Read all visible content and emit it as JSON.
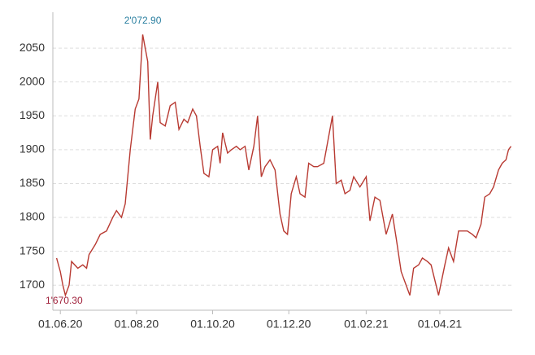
{
  "chart_data": {
    "type": "line",
    "x": [
      "2020-05-29",
      "2020-06-01",
      "2020-06-03",
      "2020-06-05",
      "2020-06-08",
      "2020-06-10",
      "2020-06-15",
      "2020-06-19",
      "2020-06-22",
      "2020-06-24",
      "2020-06-29",
      "2020-07-03",
      "2020-07-08",
      "2020-07-13",
      "2020-07-16",
      "2020-07-20",
      "2020-07-23",
      "2020-07-27",
      "2020-07-31",
      "2020-08-03",
      "2020-08-06",
      "2020-08-10",
      "2020-08-12",
      "2020-08-14",
      "2020-08-18",
      "2020-08-20",
      "2020-08-24",
      "2020-08-28",
      "2020-09-01",
      "2020-09-04",
      "2020-09-08",
      "2020-09-11",
      "2020-09-15",
      "2020-09-18",
      "2020-09-21",
      "2020-09-24",
      "2020-09-28",
      "2020-10-01",
      "2020-10-05",
      "2020-10-07",
      "2020-10-09",
      "2020-10-13",
      "2020-10-16",
      "2020-10-20",
      "2020-10-23",
      "2020-10-27",
      "2020-10-30",
      "2020-11-03",
      "2020-11-06",
      "2020-11-09",
      "2020-11-12",
      "2020-11-16",
      "2020-11-20",
      "2020-11-24",
      "2020-11-27",
      "2020-11-30",
      "2020-12-03",
      "2020-12-07",
      "2020-12-10",
      "2020-12-14",
      "2020-12-17",
      "2020-12-21",
      "2020-12-24",
      "2020-12-29",
      "2021-01-05",
      "2021-01-08",
      "2021-01-12",
      "2021-01-15",
      "2021-01-19",
      "2021-01-22",
      "2021-01-27",
      "2021-02-01",
      "2021-02-04",
      "2021-02-08",
      "2021-02-12",
      "2021-02-17",
      "2021-02-22",
      "2021-02-25",
      "2021-03-01",
      "2021-03-05",
      "2021-03-08",
      "2021-03-11",
      "2021-03-15",
      "2021-03-18",
      "2021-03-22",
      "2021-03-25",
      "2021-03-31",
      "2021-04-05",
      "2021-04-08",
      "2021-04-12",
      "2021-04-16",
      "2021-04-20",
      "2021-04-23",
      "2021-04-27",
      "2021-04-30",
      "2021-05-04",
      "2021-05-07",
      "2021-05-11",
      "2021-05-14",
      "2021-05-18",
      "2021-05-21",
      "2021-05-24",
      "2021-05-26",
      "2021-05-28"
    ],
    "series": [
      {
        "color": "#b83a32",
        "values": [
          1740,
          1720,
          1700,
          1685,
          1700,
          1735,
          1725,
          1730,
          1725,
          1745,
          1760,
          1775,
          1780,
          1800,
          1810,
          1800,
          1820,
          1900,
          1960,
          1975,
          2070,
          2030,
          1915,
          1950,
          2000,
          1940,
          1935,
          1965,
          1970,
          1930,
          1945,
          1940,
          1960,
          1950,
          1905,
          1865,
          1860,
          1900,
          1905,
          1880,
          1925,
          1895,
          1900,
          1905,
          1900,
          1905,
          1870,
          1905,
          1950,
          1860,
          1875,
          1885,
          1870,
          1805,
          1780,
          1775,
          1835,
          1860,
          1835,
          1830,
          1880,
          1875,
          1875,
          1880,
          1950,
          1850,
          1855,
          1835,
          1840,
          1860,
          1845,
          1860,
          1795,
          1830,
          1825,
          1775,
          1805,
          1770,
          1720,
          1700,
          1685,
          1725,
          1730,
          1740,
          1735,
          1730,
          1685,
          1730,
          1755,
          1735,
          1780,
          1780,
          1780,
          1775,
          1770,
          1790,
          1830,
          1835,
          1845,
          1870,
          1880,
          1885,
          1900,
          1905
        ]
      }
    ],
    "annotations": [
      {
        "text": "2'072.90",
        "x": "2020-08-06",
        "value": 2072.9,
        "color": "#2a7fa0"
      },
      {
        "text": "1'670.30",
        "x": "2020-06-04",
        "value": 1670.3,
        "color": "#a0203a"
      }
    ],
    "xlim": [
      "2020-05-26",
      "2021-05-29"
    ],
    "xticks": [
      {
        "value": "2020-06-01",
        "label": "01.06.20"
      },
      {
        "value": "2020-08-01",
        "label": "01.08.20"
      },
      {
        "value": "2020-10-01",
        "label": "01.10.20"
      },
      {
        "value": "2020-12-01",
        "label": "01.12.20"
      },
      {
        "value": "2021-02-01",
        "label": "01.02.21"
      },
      {
        "value": "2021-04-01",
        "label": "01.04.21"
      }
    ],
    "ylim": [
      1663,
      2103
    ],
    "yticks": [
      1700,
      1750,
      1800,
      1850,
      1900,
      1950,
      2000,
      2050
    ],
    "grid": true
  }
}
